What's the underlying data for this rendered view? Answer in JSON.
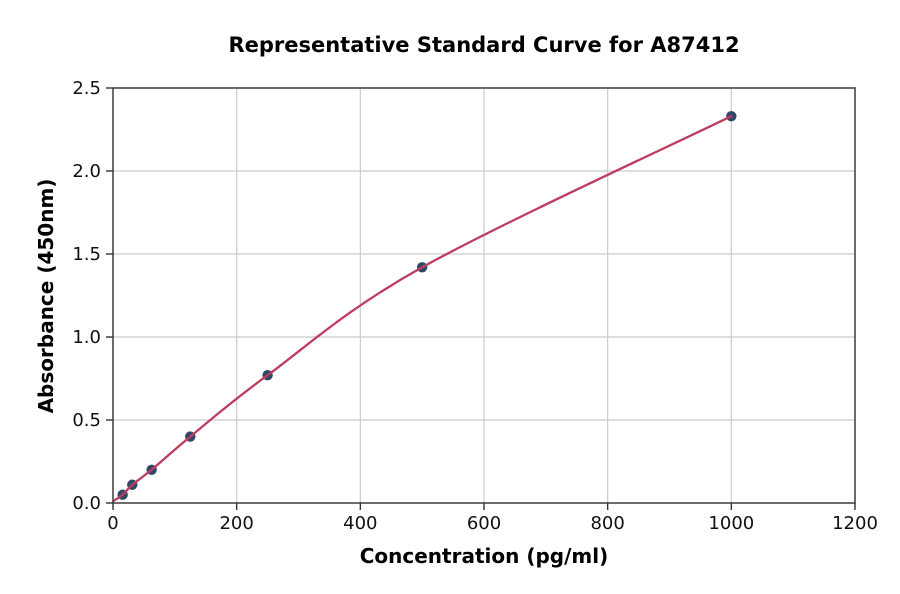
{
  "figure": {
    "background": "#ffffff"
  },
  "chart_data": {
    "type": "scatter",
    "title": "Representative Standard Curve for A87412",
    "xlabel": "Concentration (pg/ml)",
    "ylabel": "Absorbance (450nm)",
    "xlim": [
      0,
      1200
    ],
    "ylim": [
      0,
      2.5
    ],
    "x_ticks": [
      0,
      200,
      400,
      600,
      800,
      1000,
      1200
    ],
    "x_tick_labels": [
      "0",
      "200",
      "400",
      "600",
      "800",
      "1000",
      "1200"
    ],
    "y_ticks": [
      0,
      0.5,
      1.0,
      1.5,
      2.0,
      2.5
    ],
    "y_tick_labels": [
      "0.0",
      "0.5",
      "1.0",
      "1.5",
      "2.0",
      "2.5"
    ],
    "grid": true,
    "legend": "none",
    "series": [
      {
        "name": "standard-points",
        "type": "scatter",
        "color": "#2E4A68",
        "marker": "circle",
        "x": [
          15.6,
          31.2,
          62.5,
          125,
          250,
          500,
          1000
        ],
        "y": [
          0.05,
          0.11,
          0.2,
          0.4,
          0.77,
          1.42,
          2.33
        ]
      },
      {
        "name": "fit-curve",
        "type": "line",
        "color": "#BE3C60",
        "x": [
          0,
          15.6,
          31.2,
          62.5,
          125,
          250,
          500,
          1000
        ],
        "y": [
          0.01,
          0.05,
          0.11,
          0.2,
          0.4,
          0.77,
          1.42,
          2.33
        ]
      }
    ],
    "colors": {
      "grid": "#CBCBCB",
      "spine": "#4A4A4A",
      "tick": "#333333",
      "text": "#000000"
    }
  }
}
